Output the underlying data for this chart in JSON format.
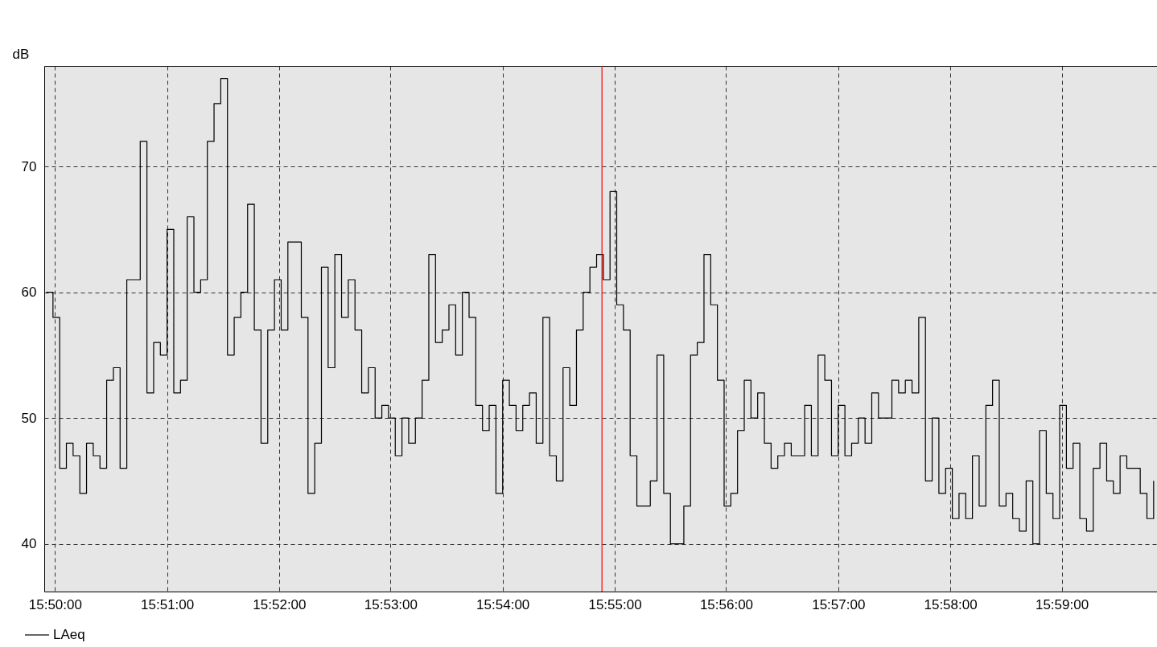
{
  "chart_data": {
    "type": "step",
    "ylabel": "dB",
    "xlim": [
      15.8317,
      15.9975
    ],
    "xticks": [
      {
        "value": 15.8333,
        "label": "15:50:00"
      },
      {
        "value": 15.85,
        "label": "15:51:00"
      },
      {
        "value": 15.8667,
        "label": "15:52:00"
      },
      {
        "value": 15.8833,
        "label": "15:53:00"
      },
      {
        "value": 15.9,
        "label": "15:54:00"
      },
      {
        "value": 15.9167,
        "label": "15:55:00"
      },
      {
        "value": 15.9333,
        "label": "15:56:00"
      },
      {
        "value": 15.95,
        "label": "15:57:00"
      },
      {
        "value": 15.9667,
        "label": "15:58:00"
      },
      {
        "value": 15.9833,
        "label": "15:59:00"
      }
    ],
    "ylim": [
      36.2,
      78
    ],
    "yticks": [
      40,
      50,
      60,
      70
    ],
    "grid": true,
    "legend": "bottom left",
    "line_style": "solid",
    "ref_lines": [
      {
        "axis": "x",
        "value": 15.9148,
        "color": "#ff0000"
      }
    ],
    "x": [
      15.832,
      15.833,
      15.834,
      15.835,
      15.836,
      15.837,
      15.838,
      15.839,
      15.84,
      15.841,
      15.842,
      15.843,
      15.844,
      15.845,
      15.846,
      15.847,
      15.848,
      15.849,
      15.85,
      15.851,
      15.852,
      15.853,
      15.854,
      15.855,
      15.856,
      15.857,
      15.858,
      15.859,
      15.86,
      15.861,
      15.862,
      15.863,
      15.864,
      15.865,
      15.866,
      15.867,
      15.868,
      15.869,
      15.87,
      15.871,
      15.872,
      15.873,
      15.874,
      15.875,
      15.876,
      15.877,
      15.878,
      15.879,
      15.88,
      15.881,
      15.882,
      15.883,
      15.884,
      15.885,
      15.886,
      15.887,
      15.888,
      15.889,
      15.89,
      15.891,
      15.892,
      15.893,
      15.894,
      15.895,
      15.896,
      15.897,
      15.898,
      15.899,
      15.9,
      15.901,
      15.902,
      15.903,
      15.904,
      15.905,
      15.906,
      15.907,
      15.908,
      15.909,
      15.91,
      15.911,
      15.912,
      15.913,
      15.914,
      15.915,
      15.916,
      15.917,
      15.918,
      15.919,
      15.92,
      15.921,
      15.922,
      15.923,
      15.924,
      15.925,
      15.926,
      15.927,
      15.928,
      15.929,
      15.93,
      15.931,
      15.932,
      15.933,
      15.934,
      15.935,
      15.936,
      15.937,
      15.938,
      15.939,
      15.94,
      15.941,
      15.942,
      15.943,
      15.944,
      15.945,
      15.946,
      15.947,
      15.948,
      15.949,
      15.95,
      15.951,
      15.952,
      15.953,
      15.954,
      15.955,
      15.956,
      15.957,
      15.958,
      15.959,
      15.96,
      15.961,
      15.962,
      15.963,
      15.964,
      15.965,
      15.966,
      15.967,
      15.968,
      15.969,
      15.97,
      15.971,
      15.972,
      15.973,
      15.974,
      15.975,
      15.976,
      15.977,
      15.978,
      15.979,
      15.98,
      15.981,
      15.982,
      15.983,
      15.984,
      15.985,
      15.986,
      15.987,
      15.988,
      15.989,
      15.99,
      15.991,
      15.992,
      15.993,
      15.994,
      15.995,
      15.996,
      15.997
    ],
    "series": [
      {
        "name": "LAeq",
        "color": "#000000",
        "values": [
          60,
          58,
          46,
          48,
          47,
          44,
          48,
          47,
          46,
          53,
          54,
          46,
          61,
          61,
          72,
          52,
          56,
          55,
          65,
          52,
          53,
          66,
          60,
          61,
          72,
          75,
          77,
          55,
          58,
          60,
          67,
          57,
          48,
          57,
          61,
          57,
          64,
          64,
          58,
          44,
          48,
          62,
          54,
          63,
          58,
          61,
          57,
          52,
          54,
          50,
          51,
          50,
          47,
          50,
          48,
          50,
          53,
          63,
          56,
          57,
          59,
          55,
          60,
          58,
          51,
          49,
          51,
          44,
          53,
          51,
          49,
          51,
          52,
          48,
          58,
          47,
          45,
          54,
          51,
          57,
          60,
          62,
          63,
          61,
          68,
          59,
          57,
          47,
          43,
          43,
          45,
          55,
          44,
          40,
          40,
          43,
          55,
          56,
          63,
          59,
          53,
          43,
          44,
          49,
          53,
          50,
          52,
          48,
          46,
          47,
          48,
          47,
          47,
          51,
          47,
          55,
          53,
          47,
          51,
          47,
          48,
          50,
          48,
          52,
          50,
          50,
          53,
          52,
          53,
          52,
          58,
          45,
          50,
          44,
          46,
          42,
          44,
          42,
          47,
          43,
          51,
          53,
          43,
          44,
          42,
          41,
          45,
          40,
          49,
          44,
          42,
          51,
          46,
          48,
          42,
          41,
          46,
          48,
          45,
          44,
          47,
          46,
          46,
          44,
          42,
          45
        ]
      }
    ]
  }
}
